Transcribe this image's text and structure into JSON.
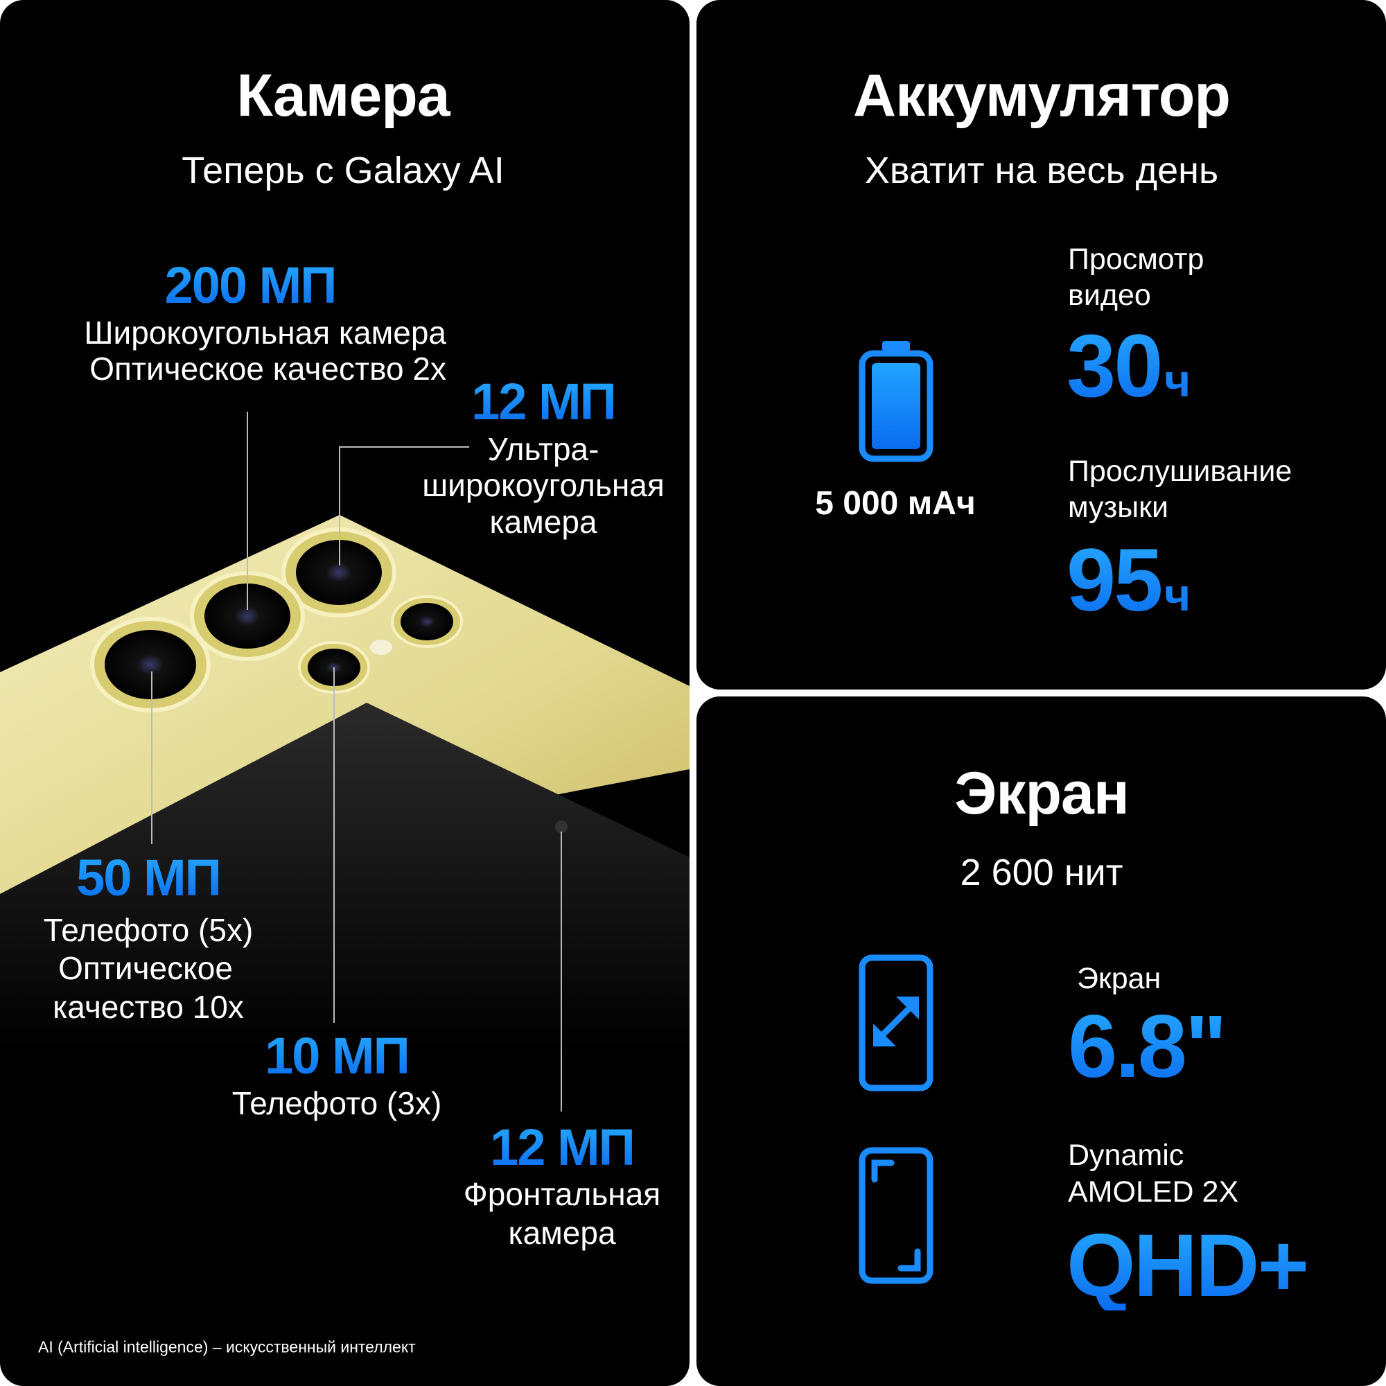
{
  "colors": {
    "accent": "#1a8cff",
    "background": "#000000",
    "phone_body": "#e6dfa0"
  },
  "camera": {
    "title": "Камера",
    "subtitle": "Теперь с Galaxy AI",
    "main": {
      "value": "200 МП",
      "line1": "Широкоугольная камера",
      "line2": "Оптическое качество 2x"
    },
    "ultrawide": {
      "value": "12 МП",
      "line1": "Ультра-",
      "line2": "широкоугольная",
      "line3": "камера"
    },
    "tele5": {
      "value": "50 МП",
      "line1": "Телефото (5x)",
      "line2": "Оптическое",
      "line3": "качество 10x"
    },
    "tele3": {
      "value": "10 МП",
      "line1": "Телефото (3x)"
    },
    "front": {
      "value": "12 МП",
      "line1": "Фронтальная",
      "line2": "камера"
    },
    "footnote": "AI (Artificial intelligence) – искусственный интеллект"
  },
  "battery": {
    "title": "Аккумулятор",
    "subtitle": "Хватит на весь день",
    "icon": "battery-icon",
    "capacity": "5 000 мАч",
    "video": {
      "label1": "Просмотр",
      "label2": "видео",
      "value": "30",
      "unit": "ч"
    },
    "music": {
      "label1": "Прослушивание",
      "label2": "музыки",
      "value": "95",
      "unit": "ч"
    }
  },
  "display": {
    "title": "Экран",
    "subtitle": "2 600 нит",
    "size": {
      "icon": "phone-resize-icon",
      "label": "Экран",
      "value": "6.8\""
    },
    "type": {
      "icon": "phone-fullscreen-icon",
      "label1": "Dynamic",
      "label2": "AMOLED 2X",
      "value": "QHD+"
    }
  }
}
